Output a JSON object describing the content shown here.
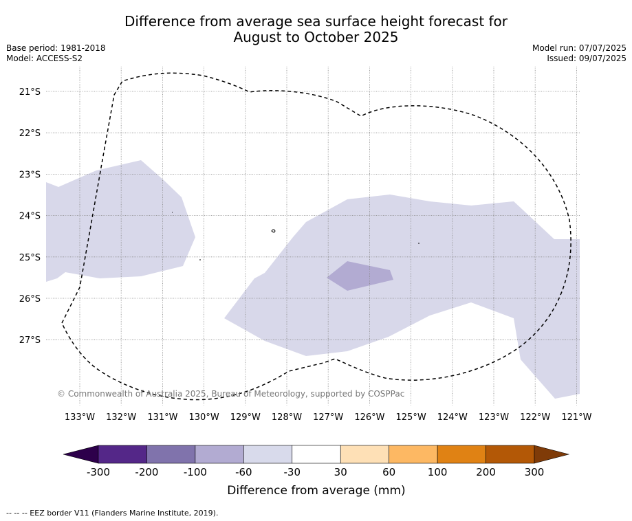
{
  "title": {
    "line1": "Difference from average sea surface height forecast for",
    "line2": "August to October 2025"
  },
  "header_left": {
    "base_period": "Base period: 1981-2018",
    "model": "Model: ACCESS-S2"
  },
  "header_right": {
    "model_run": "Model run: 07/07/2025",
    "issued": "Issued: 09/07/2025"
  },
  "map": {
    "lon_labels": [
      "133°W",
      "132°W",
      "131°W",
      "130°W",
      "129°W",
      "128°W",
      "127°W",
      "126°W",
      "125°W",
      "124°W",
      "123°W",
      "122°W",
      "121°W"
    ],
    "lat_labels": [
      "21°S",
      "22°S",
      "23°S",
      "24°S",
      "25°S",
      "26°S",
      "27°S"
    ],
    "copyright": "© Commonwealth of Australia 2025, Bureau of Meteorology, supported by COSPPac",
    "colors": {
      "anomaly_light": "#d8d8ea",
      "anomaly_medium": "#b2abd2",
      "eez_line": "#000000",
      "grid": "#888888"
    }
  },
  "colorbar": {
    "tick_labels": [
      "-300",
      "-200",
      "-100",
      "-60",
      "-30",
      "30",
      "60",
      "100",
      "200",
      "300"
    ],
    "colors": [
      "#2d004b",
      "#542788",
      "#8073ac",
      "#b2abd2",
      "#d8daeb",
      "#ffffff",
      "#fee0b6",
      "#fdb863",
      "#e08214",
      "#b35806",
      "#7f3b08"
    ],
    "label": "Difference from average (mm)"
  },
  "footnote": "--  --  -- EEZ border V11 (Flanders Marine Institute, 2019)."
}
